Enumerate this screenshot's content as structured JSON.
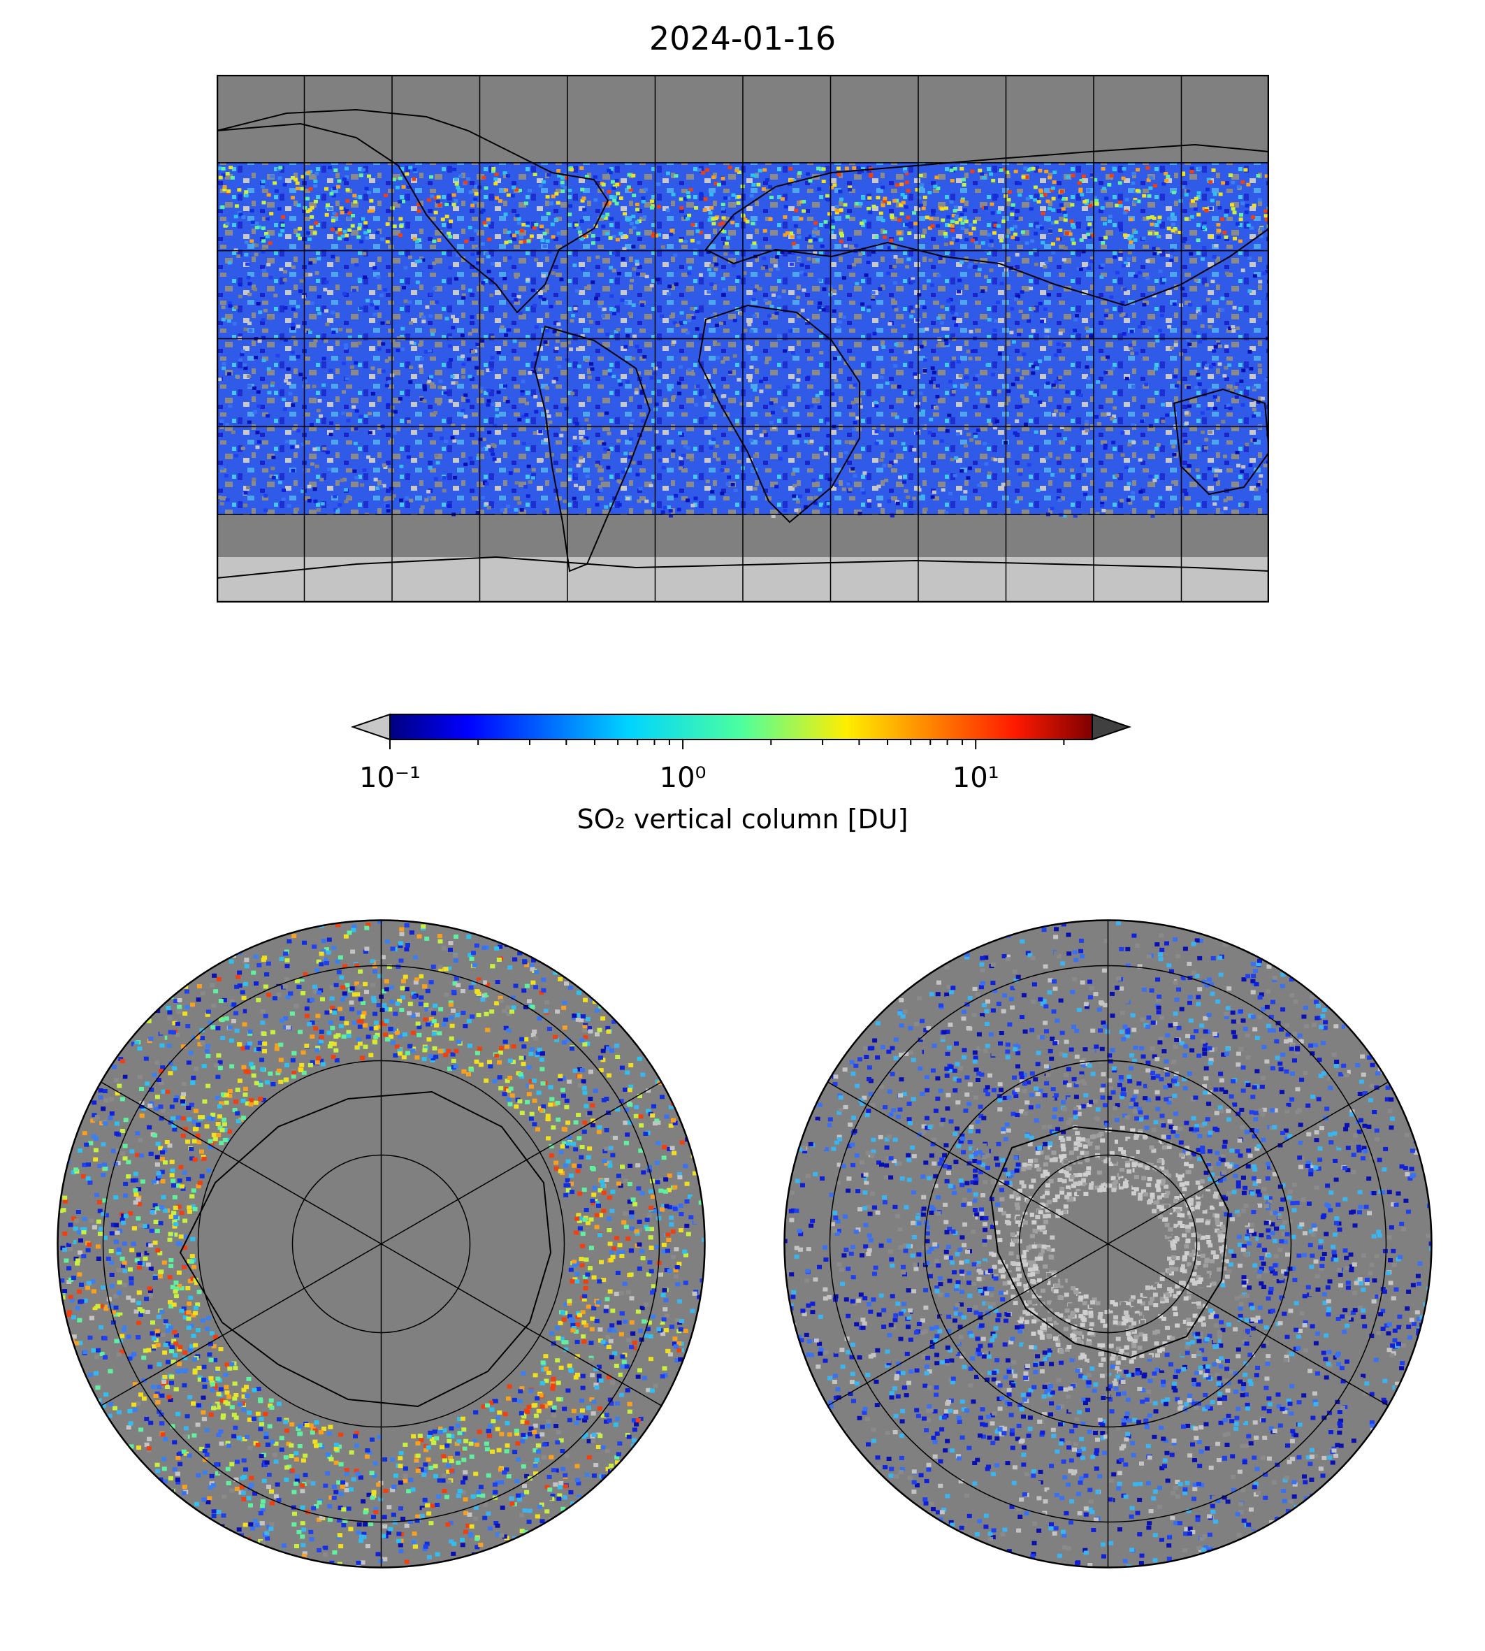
{
  "title": "2024-01-16",
  "colorbar": {
    "label": "SO₂ vertical column [DU]",
    "scale": "log",
    "range": [
      0.1,
      25
    ],
    "ticks": [
      {
        "value": 0.1,
        "label": "10⁻¹"
      },
      {
        "value": 1,
        "label": "10⁰"
      },
      {
        "value": 10,
        "label": "10¹"
      }
    ],
    "colormap": "jet",
    "under_color": "#c8c8c8",
    "over_color": "#404040"
  },
  "colors": {
    "no_data": "#808080",
    "below_range": "#c8c8c8",
    "coastline": "#000000",
    "grid": "#000000"
  },
  "maps": [
    {
      "id": "global",
      "projection": "equirectangular",
      "gridlines_lon_step": 30,
      "gridlines_lat_step": 30
    },
    {
      "id": "north-polar",
      "projection": "north-polar-stereographic"
    },
    {
      "id": "south-polar",
      "projection": "south-polar-stereographic"
    }
  ]
}
